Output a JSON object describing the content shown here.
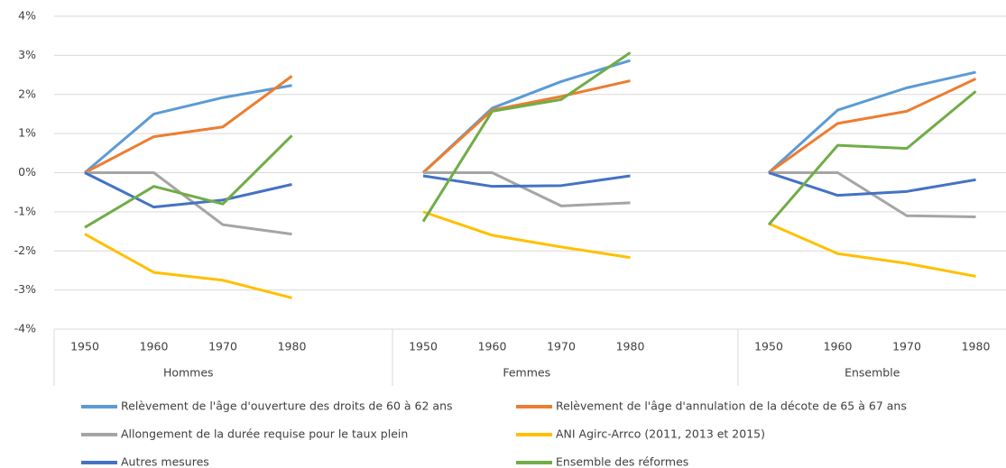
{
  "chart_data": {
    "type": "line",
    "groups": [
      "Hommes",
      "Femmes",
      "Ensemble"
    ],
    "categories": [
      "1950",
      "1960",
      "1970",
      "1980"
    ],
    "ylim": [
      -4,
      4
    ],
    "yticks": [
      {
        "value": -4,
        "label": "-4%"
      },
      {
        "value": -3,
        "label": "-3%"
      },
      {
        "value": -2,
        "label": "-2%"
      },
      {
        "value": -1,
        "label": "-1%"
      },
      {
        "value": 0,
        "label": "0%"
      },
      {
        "value": 1,
        "label": "1%"
      },
      {
        "value": 2,
        "label": "2%"
      },
      {
        "value": 3,
        "label": "3%"
      },
      {
        "value": 4,
        "label": "4%"
      }
    ],
    "grid": true,
    "legend": "bottom",
    "series": [
      {
        "name": "Relèvement de l'âge d'ouverture des droits de 60 à 62 ans",
        "color": "#5b9bd5",
        "values": [
          [
            0,
            1.5,
            1.92,
            2.23
          ],
          [
            0,
            1.65,
            2.33,
            2.87
          ],
          [
            0,
            1.6,
            2.17,
            2.57
          ]
        ]
      },
      {
        "name": "Relèvement de l'âge d'annulation de la décote de 65 à 67 ans",
        "color": "#ed7d31",
        "values": [
          [
            0,
            0.92,
            1.17,
            2.47
          ],
          [
            0,
            1.6,
            1.95,
            2.35
          ],
          [
            0,
            1.26,
            1.57,
            2.4
          ]
        ]
      },
      {
        "name": "Allongement de la durée requise pour le taux plein",
        "color": "#a5a5a5",
        "values": [
          [
            0,
            0,
            -1.33,
            -1.57
          ],
          [
            0,
            0,
            -0.85,
            -0.77
          ],
          [
            0,
            0,
            -1.1,
            -1.13
          ]
        ]
      },
      {
        "name": "ANI Agirc-Arrco (2011, 2013 et 2015)",
        "color": "#ffc000",
        "values": [
          [
            -1.57,
            -2.55,
            -2.75,
            -3.2
          ],
          [
            -1.0,
            -1.6,
            -1.9,
            -2.17
          ],
          [
            -1.3,
            -2.07,
            -2.32,
            -2.65
          ]
        ]
      },
      {
        "name": "Autres mesures",
        "color": "#4472c4",
        "values": [
          [
            0,
            -0.88,
            -0.7,
            -0.3
          ],
          [
            -0.08,
            -0.35,
            -0.33,
            -0.08
          ],
          [
            0,
            -0.58,
            -0.48,
            -0.18
          ]
        ]
      },
      {
        "name": "Ensemble des réformes",
        "color": "#70ad47",
        "values": [
          [
            -1.4,
            -0.35,
            -0.8,
            0.95
          ],
          [
            -1.25,
            1.57,
            1.87,
            3.07
          ],
          [
            -1.33,
            0.7,
            0.62,
            2.08
          ]
        ]
      }
    ]
  }
}
